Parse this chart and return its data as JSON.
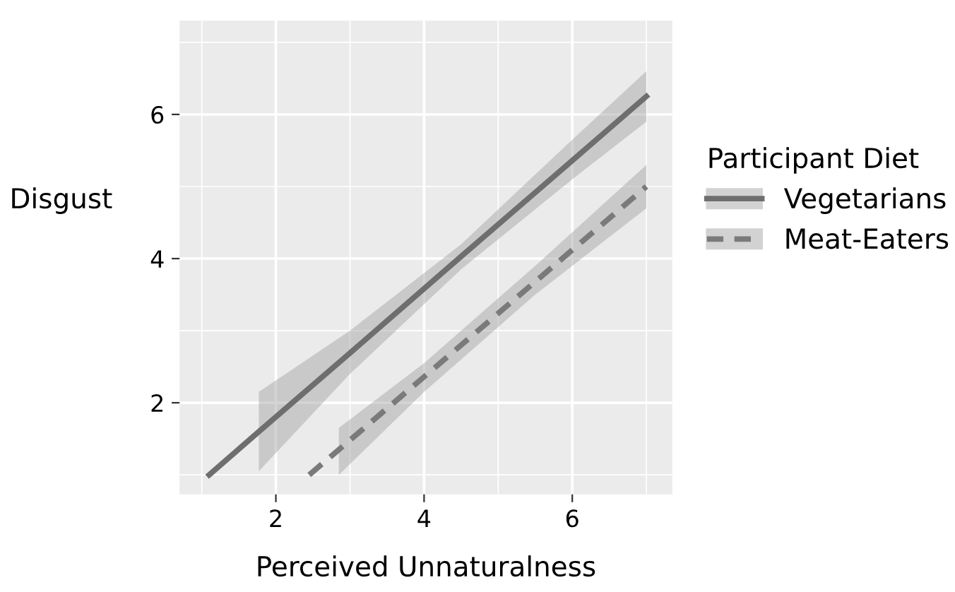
{
  "chart_data": {
    "type": "line",
    "xlabel": "Perceived Unnaturalness",
    "ylabel": "Disgust",
    "legend_title": "Participant Diet",
    "xlim": [
      0.7,
      7.35
    ],
    "ylim": [
      0.73,
      7.3
    ],
    "xticks": [
      2,
      4,
      6
    ],
    "yticks": [
      2,
      4,
      6
    ],
    "grid": true,
    "legend": "right",
    "marker": "none",
    "series": [
      {
        "name": "Vegetarians",
        "color": "#6e6e6e",
        "line_style": "solid",
        "x": [
          1.1,
          1.77,
          3,
          4.5,
          6,
          7
        ],
        "values": [
          1.0,
          1.6,
          2.69,
          4.03,
          5.36,
          6.25
        ],
        "lower": [
          null,
          1.05,
          2.4,
          3.85,
          5.1,
          5.9
        ],
        "upper": [
          null,
          2.15,
          3.0,
          4.2,
          5.65,
          6.6
        ]
      },
      {
        "name": "Meat-Eaters",
        "color": "#7a7a7a",
        "line_style": "dashed",
        "x": [
          2.45,
          2.85,
          4,
          5.5,
          7
        ],
        "values": [
          1.0,
          1.35,
          2.36,
          3.68,
          5.0
        ],
        "lower": [
          null,
          1.0,
          2.15,
          3.5,
          4.7
        ],
        "upper": [
          null,
          1.65,
          2.55,
          3.9,
          5.3
        ]
      }
    ]
  }
}
